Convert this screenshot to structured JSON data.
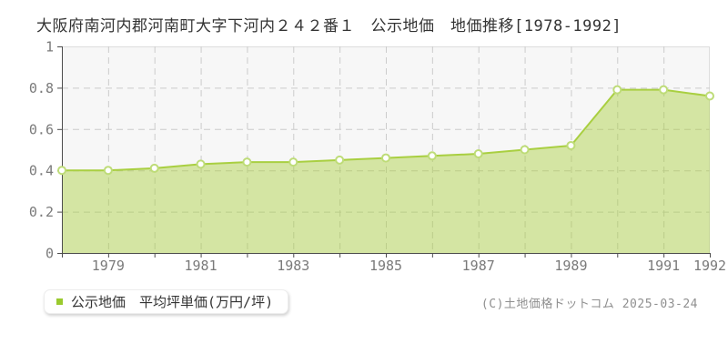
{
  "page": {
    "title": "大阪府南河内郡河南町大字下河内２４２番１　公示地価　地価推移[1978-1992]",
    "copyright": "(C)土地価格ドットコム 2025-03-24"
  },
  "legend": {
    "label": "公示地価　平均坪単価(万円/坪)",
    "bullet_color": "#9aca2e"
  },
  "colors": {
    "line": "#a9cf41",
    "area_fill": "#a9ce3c",
    "marker_stroke": "#bedc78",
    "marker_fill": "#ffffff",
    "grid": "#cccccc",
    "axis": "#4d4d4d",
    "plot_bg": "#f7f7f7",
    "plot_border": "#dddddd",
    "tick_text": "#7a7a7a",
    "title_text": "#333333",
    "copyright_text": "#8f8f8f"
  },
  "chart_data": {
    "type": "area",
    "title": "大阪府南河内郡河南町大字下河内２４２番１　公示地価　地価推移[1978-1992]",
    "x": [
      1978,
      1979,
      1980,
      1981,
      1982,
      1983,
      1984,
      1985,
      1986,
      1987,
      1988,
      1989,
      1990,
      1991,
      1992
    ],
    "series": [
      {
        "name": "公示地価　平均坪単価(万円/坪)",
        "values": [
          0.4,
          0.4,
          0.41,
          0.43,
          0.44,
          0.44,
          0.45,
          0.46,
          0.47,
          0.48,
          0.5,
          0.52,
          0.79,
          0.79,
          0.76
        ]
      }
    ],
    "xlabel": "",
    "ylabel": "",
    "xlim": [
      1978,
      1992
    ],
    "ylim": [
      0,
      1
    ],
    "yticks": [
      0,
      0.2,
      0.4,
      0.6,
      0.8,
      1
    ],
    "ytick_labels": [
      "0",
      "0.2",
      "0.4",
      "0.6",
      "0.8",
      "1"
    ],
    "xtick_label_years": [
      1979,
      1981,
      1983,
      1985,
      1987,
      1989,
      1991,
      1992
    ],
    "axis_tick_years": [
      1978,
      1979,
      1980,
      1981,
      1982,
      1983,
      1984,
      1985,
      1986,
      1987,
      1988,
      1989,
      1990,
      1991,
      1992
    ],
    "ygrid_values": [
      0.2,
      0.4,
      0.6,
      0.8
    ],
    "xgrid_years": [
      1979,
      1980,
      1981,
      1982,
      1983,
      1984,
      1985,
      1986,
      1987,
      1988,
      1989,
      1990,
      1991
    ],
    "grid": true,
    "legend_position": "bottom-left"
  }
}
